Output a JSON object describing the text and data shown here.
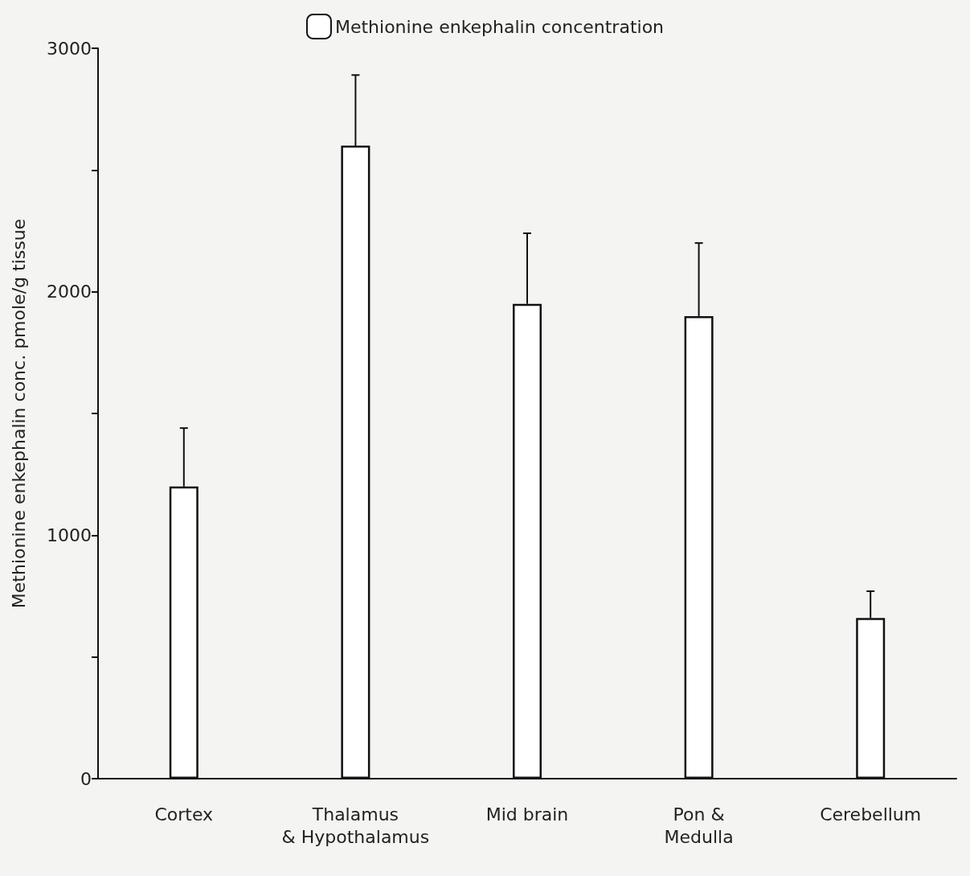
{
  "chart_data": {
    "type": "bar",
    "ylabel": "Methionine enkephalin conc. pmole/g tissue",
    "categories": [
      "Cortex",
      "Thalamus\n& Hypothalamus",
      "Mid brain",
      "Pon &\nMedulla",
      "Cerebellum"
    ],
    "series": [
      {
        "name": "Methionine enkephalin concentration",
        "color": "#ffffff",
        "values": [
          1200,
          2600,
          1950,
          1900,
          660
        ],
        "errors": [
          [
            1200,
            1440
          ],
          [
            2600,
            2890
          ],
          [
            1950,
            2240
          ],
          [
            1900,
            2200
          ],
          [
            660,
            770
          ]
        ]
      }
    ],
    "ylim": [
      0,
      3000
    ],
    "yticks": [
      0,
      {
        "value": 500,
        "label": null
      },
      1000,
      {
        "value": 1500,
        "label": null
      },
      2000,
      {
        "value": 2500,
        "label": null
      },
      3000
    ],
    "legend": "top",
    "grid": false
  }
}
